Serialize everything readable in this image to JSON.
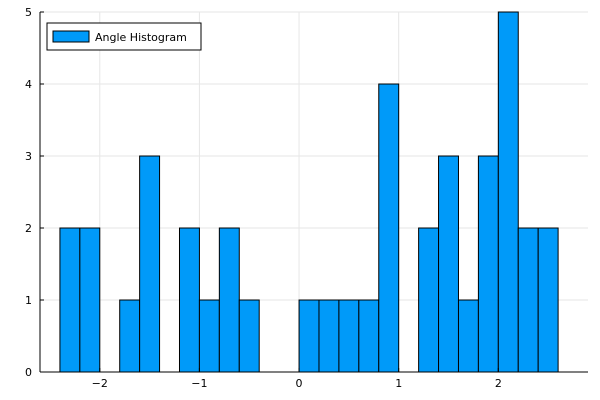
{
  "chart_data": {
    "type": "bar",
    "title": "",
    "xlabel": "",
    "ylabel": "",
    "grid": true,
    "legend_position": "top-left",
    "bin_width": 0.2,
    "xlim": [
      -2.6,
      2.9
    ],
    "ylim": [
      0,
      5
    ],
    "xticks": [
      -2,
      -1,
      0,
      1,
      2
    ],
    "xtick_labels": [
      "−2",
      "−1",
      "0",
      "1",
      "2"
    ],
    "yticks": [
      0,
      1,
      2,
      3,
      4,
      5
    ],
    "ytick_labels": [
      "0",
      "1",
      "2",
      "3",
      "4",
      "5"
    ],
    "series": [
      {
        "name": "Angle Histogram",
        "color": "#009af9",
        "bins": [
          {
            "x0": -2.4,
            "x1": -2.2,
            "count": 2
          },
          {
            "x0": -2.2,
            "x1": -2.0,
            "count": 2
          },
          {
            "x0": -2.0,
            "x1": -1.8,
            "count": 0
          },
          {
            "x0": -1.8,
            "x1": -1.6,
            "count": 1
          },
          {
            "x0": -1.6,
            "x1": -1.4,
            "count": 3
          },
          {
            "x0": -1.4,
            "x1": -1.2,
            "count": 0
          },
          {
            "x0": -1.2,
            "x1": -1.0,
            "count": 2
          },
          {
            "x0": -1.0,
            "x1": -0.8,
            "count": 1
          },
          {
            "x0": -0.8,
            "x1": -0.6,
            "count": 2
          },
          {
            "x0": -0.6,
            "x1": -0.4,
            "count": 1
          },
          {
            "x0": -0.4,
            "x1": -0.2,
            "count": 0
          },
          {
            "x0": -0.2,
            "x1": 0.0,
            "count": 0
          },
          {
            "x0": 0.0,
            "x1": 0.2,
            "count": 1
          },
          {
            "x0": 0.2,
            "x1": 0.4,
            "count": 1
          },
          {
            "x0": 0.4,
            "x1": 0.6,
            "count": 1
          },
          {
            "x0": 0.6,
            "x1": 0.8,
            "count": 1
          },
          {
            "x0": 0.8,
            "x1": 1.0,
            "count": 4
          },
          {
            "x0": 1.0,
            "x1": 1.2,
            "count": 0
          },
          {
            "x0": 1.2,
            "x1": 1.4,
            "count": 2
          },
          {
            "x0": 1.4,
            "x1": 1.6,
            "count": 3
          },
          {
            "x0": 1.6,
            "x1": 1.8,
            "count": 1
          },
          {
            "x0": 1.8,
            "x1": 2.0,
            "count": 3
          },
          {
            "x0": 2.0,
            "x1": 2.2,
            "count": 5
          },
          {
            "x0": 2.2,
            "x1": 2.4,
            "count": 2
          },
          {
            "x0": 2.4,
            "x1": 2.6,
            "count": 2
          }
        ]
      }
    ]
  }
}
